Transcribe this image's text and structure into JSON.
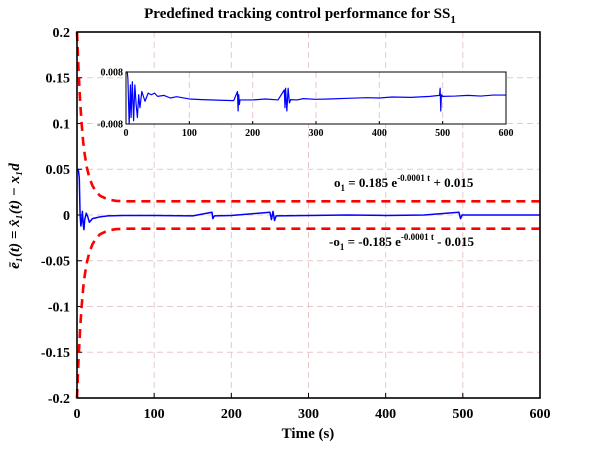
{
  "chart_data": [
    {
      "type": "line",
      "title": "Predefined tracking control performance for SS",
      "title_subscript": "1",
      "xlabel": "Time (s)",
      "ylabel": "ē₁(t) = x̂₁(t) − x₁d",
      "xlim": [
        0,
        600
      ],
      "ylim": [
        -0.2,
        0.2
      ],
      "xticks": [
        "0",
        "100",
        "200",
        "300",
        "400",
        "500",
        "600"
      ],
      "yticks": [
        "0.2",
        "0.15",
        "0.1",
        "0.05",
        "0",
        "-0.05",
        "-0.1",
        "-0.15",
        "-0.2"
      ],
      "grid": true,
      "series": [
        {
          "role": "tracking error",
          "color": "#0000ff",
          "style": "solid",
          "x": [
            0,
            1,
            2,
            3,
            4,
            5,
            6,
            7,
            8,
            9,
            10,
            12,
            14,
            16,
            18,
            20,
            25,
            30,
            40,
            60,
            100,
            150,
            175,
            176,
            178,
            200,
            250,
            252,
            254,
            256,
            258,
            300,
            350,
            400,
            450,
            495,
            497,
            499,
            550,
            600
          ],
          "y": [
            0.05,
            0.05,
            0.048,
            0.04,
            0.0,
            -0.012,
            -0.006,
            0.004,
            -0.01,
            -0.016,
            -0.005,
            0.002,
            -0.002,
            -0.008,
            -0.006,
            -0.004,
            -0.003,
            -0.002,
            -0.001,
            -0.0005,
            -0.0005,
            -0.001,
            0.003,
            -0.004,
            -0.001,
            -0.0005,
            0.003,
            -0.005,
            0.004,
            -0.006,
            -0.001,
            -0.0005,
            0.0,
            -0.0005,
            0.0,
            0.003,
            -0.004,
            0.0,
            0.0,
            0.0
          ]
        },
        {
          "role": "upper bound",
          "color": "#ff0000",
          "style": "dashed",
          "x": [
            0,
            2,
            4,
            6,
            8,
            10,
            13,
            16,
            20,
            25,
            30,
            40,
            50,
            60,
            80,
            100,
            600
          ],
          "y": [
            0.2,
            0.158,
            0.125,
            0.1,
            0.08,
            0.066,
            0.051,
            0.041,
            0.032,
            0.025,
            0.021,
            0.017,
            0.0155,
            0.015,
            0.015,
            0.015,
            0.015
          ]
        },
        {
          "role": "lower bound",
          "color": "#ff0000",
          "style": "dashed",
          "x": [
            0,
            2,
            4,
            6,
            8,
            10,
            13,
            16,
            20,
            25,
            30,
            40,
            50,
            60,
            80,
            100,
            600
          ],
          "y": [
            -0.2,
            -0.158,
            -0.125,
            -0.1,
            -0.08,
            -0.066,
            -0.051,
            -0.041,
            -0.032,
            -0.025,
            -0.021,
            -0.017,
            -0.0155,
            -0.015,
            -0.015,
            -0.015,
            -0.015
          ]
        }
      ],
      "annotations": {
        "upper": {
          "pre": "o",
          "sub": "1",
          "mid": " = 0.185 e",
          "sup": "-0.0001 t",
          "post": " + 0.015"
        },
        "lower": {
          "pre": "-o",
          "sub": "1",
          "mid": " = -0.185 e",
          "sup": "-0.0001 t",
          "post": " - 0.015"
        }
      }
    },
    {
      "type": "line",
      "role": "inset",
      "xlim": [
        0,
        600
      ],
      "ylim": [
        -0.008,
        0.008
      ],
      "xticks": [
        "0",
        "100",
        "200",
        "300",
        "400",
        "500",
        "600"
      ],
      "yticks": [
        "0.008",
        "-0.008"
      ],
      "grid": true,
      "series": [
        {
          "color": "#0000ff",
          "style": "solid",
          "x": [
            0,
            2,
            3,
            5,
            7,
            8,
            10,
            12,
            14,
            16,
            18,
            20,
            22,
            25,
            30,
            35,
            40,
            45,
            50,
            60,
            70,
            80,
            100,
            120,
            150,
            170,
            176,
            177,
            178,
            179,
            180,
            200,
            220,
            240,
            250,
            251,
            252,
            254,
            256,
            258,
            260,
            270,
            280,
            300,
            320,
            350,
            380,
            400,
            420,
            450,
            480,
            495,
            496,
            497,
            498,
            500,
            520,
            540,
            560,
            580,
            600
          ],
          "y": [
            0.008,
            0.008,
            0.006,
            -0.008,
            0.004,
            -0.006,
            0.005,
            -0.007,
            0.004,
            -0.002,
            -0.006,
            0.001,
            -0.003,
            0.002,
            -0.001,
            0.0015,
            0.001,
            0.0015,
            0.0005,
            0.0008,
            0.0,
            0.0004,
            -0.0003,
            -0.0005,
            -0.0007,
            -0.0008,
            0.002,
            -0.004,
            0.001,
            -0.002,
            -0.0006,
            -0.0006,
            -0.0003,
            -0.0006,
            0.0025,
            -0.003,
            0.003,
            -0.004,
            0.003,
            -0.0015,
            -0.0005,
            -0.0006,
            -0.0002,
            -0.0004,
            -0.0003,
            -0.0001,
            0.0001,
            0.0,
            0.0003,
            0.0002,
            0.0005,
            0.0008,
            0.003,
            -0.004,
            0.001,
            0.0005,
            0.0006,
            0.0008,
            0.0006,
            0.0009,
            0.0009
          ]
        }
      ]
    }
  ]
}
